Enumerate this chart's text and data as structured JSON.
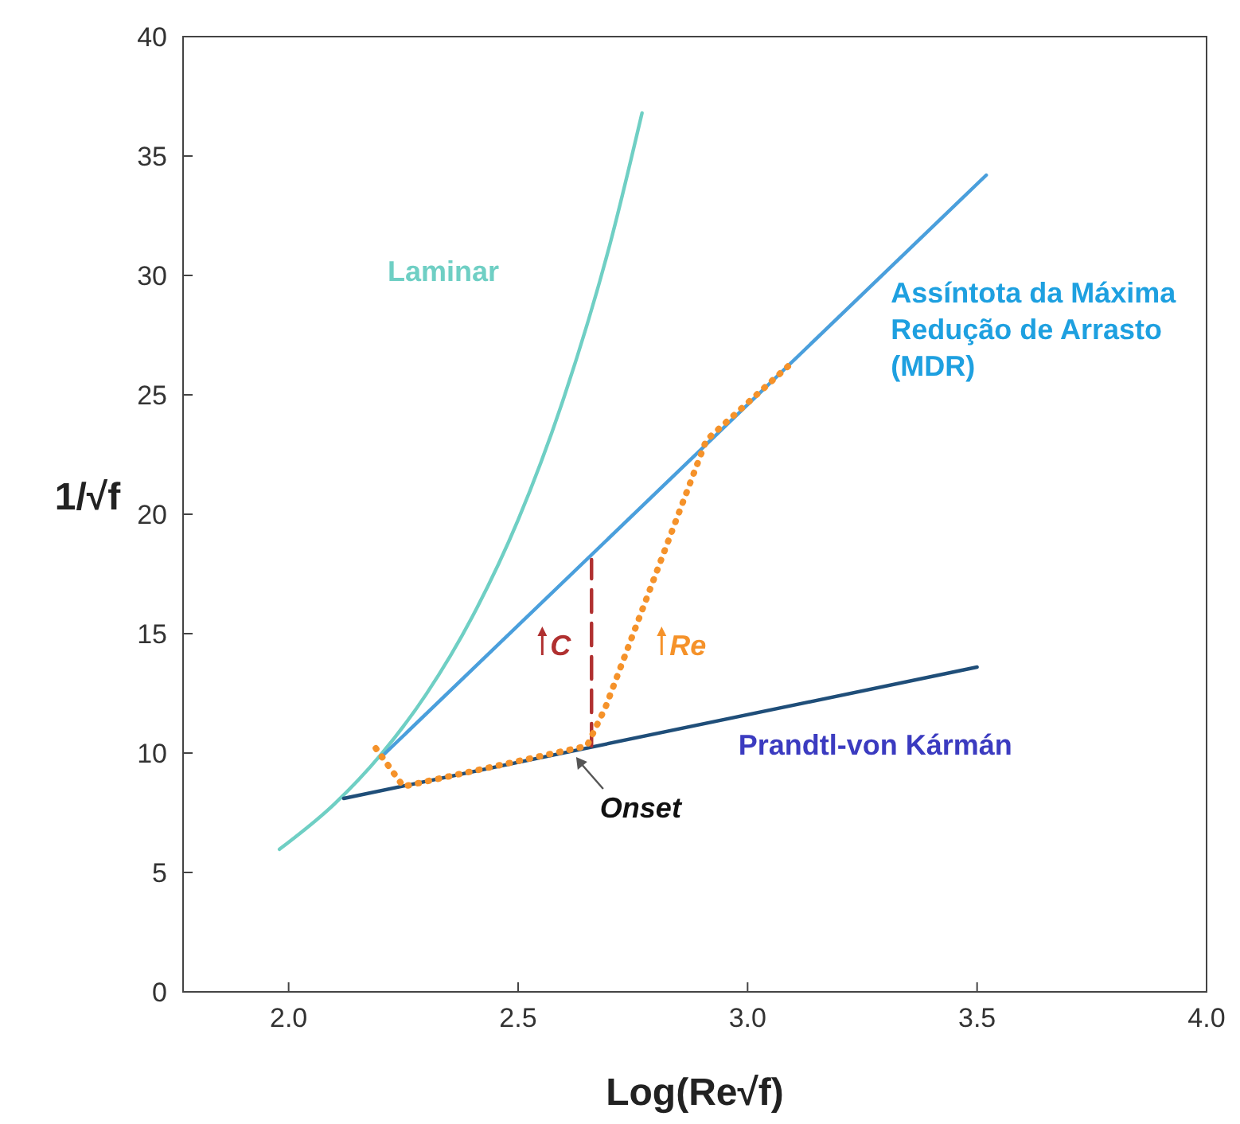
{
  "chart_data": {
    "type": "line",
    "xlabel": "Log(Re√f)",
    "ylabel": "1/√f",
    "xlim": [
      1.77,
      4.0
    ],
    "ylim": [
      0,
      40
    ],
    "xticks": [
      {
        "value": 2,
        "label": "2.0"
      },
      {
        "value": 2.5,
        "label": "2.5"
      },
      {
        "value": 3,
        "label": "3.0"
      },
      {
        "value": 3.5,
        "label": "3.5"
      },
      {
        "value": 4,
        "label": "4.0"
      }
    ],
    "yticks": [
      0,
      5,
      10,
      15,
      20,
      25,
      30,
      35,
      40
    ],
    "grid": false,
    "series": [
      {
        "name": "Laminar",
        "color": "#6fcfc4",
        "x": [
          1.98,
          2.1,
          2.2,
          2.3,
          2.4,
          2.5,
          2.6,
          2.7,
          2.77
        ],
        "values": [
          5.97,
          7.87,
          9.91,
          12.47,
          15.7,
          19.76,
          24.9,
          31.3,
          36.8
        ]
      },
      {
        "name": "Assíntota da Máxima Redução de Arrasto (MDR)",
        "color": "#4a9fdc",
        "x": [
          2.2,
          3.52
        ],
        "values": [
          9.8,
          34.2
        ]
      },
      {
        "name": "Prandtl-von Kármán",
        "color": "#1f4e79",
        "x": [
          2.12,
          3.5
        ],
        "values": [
          8.1,
          13.6
        ]
      },
      {
        "color": "#b03030",
        "line_style": "dashed",
        "x": [
          2.66,
          2.66
        ],
        "values": [
          10.3,
          18.1
        ]
      },
      {
        "color": "#f5922a",
        "line_style": "dotted",
        "x": [
          2.19,
          2.25,
          2.65,
          2.69,
          2.91,
          3.1
        ],
        "values": [
          10.2,
          8.6,
          10.3,
          11.9,
          23.1,
          26.4
        ]
      }
    ],
    "annotations": [
      "C",
      "Re",
      "Onset"
    ]
  }
}
